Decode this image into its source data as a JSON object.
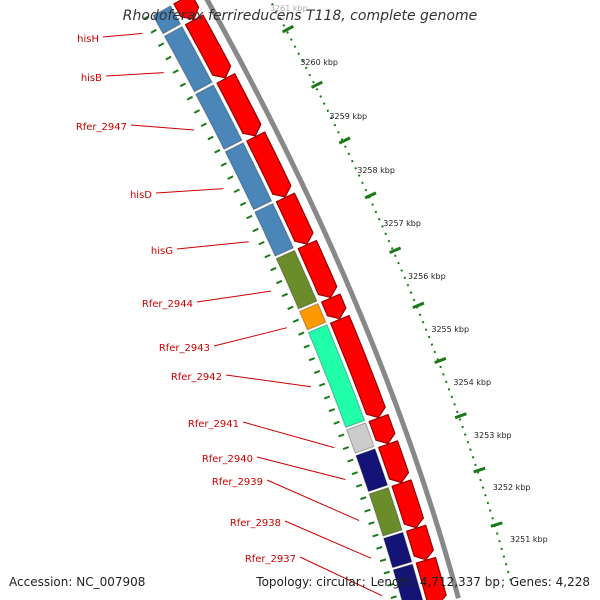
{
  "title": "Rhodoferax ferrireducens T118, complete genome",
  "footer": {
    "accession_label": "Accession:",
    "accession": "NC_007908",
    "topology_label": "Topology:",
    "topology": "circular",
    "length_label": "Length:",
    "length": "4,712,337 bp",
    "genes_label": "Genes:",
    "genes": "4,228"
  },
  "colors": {
    "gene_label": "#cc0000",
    "cds": "#ff0000",
    "tick": "#1a7a1a",
    "blue": "#4a86b8",
    "olive": "#6b8c2a",
    "orange": "#ff9900",
    "mint": "#22ffaa",
    "grey": "#cccccc",
    "navy": "#141476",
    "backbone": "#888888"
  },
  "kbp_ticks": [
    "3261 kbp",
    "3260 kbp",
    "3259 kbp",
    "3258 kbp",
    "3257 kbp",
    "3256 kbp",
    "3255 kbp",
    "3254 kbp",
    "3253 kbp",
    "3252 kbp",
    "3251 kbp"
  ],
  "genes": [
    {
      "label": "hisH",
      "color": "blue",
      "top": true
    },
    {
      "label": "hisB",
      "color": "blue"
    },
    {
      "label": "Rfer_2947",
      "color": "blue"
    },
    {
      "label": "hisD",
      "color": "blue"
    },
    {
      "label": "hisG",
      "color": "blue"
    },
    {
      "label": "Rfer_2944",
      "color": "olive"
    },
    {
      "label": "Rfer_2943",
      "color": "orange"
    },
    {
      "label": "Rfer_2942",
      "color": "mint"
    },
    {
      "label": "Rfer_2941",
      "color": "grey"
    },
    {
      "label": "Rfer_2940",
      "color": "navy"
    },
    {
      "label": "Rfer_2939",
      "color": "olive"
    },
    {
      "label": "Rfer_2938",
      "color": "navy"
    },
    {
      "label": "Rfer_2937",
      "color": "navy"
    }
  ]
}
